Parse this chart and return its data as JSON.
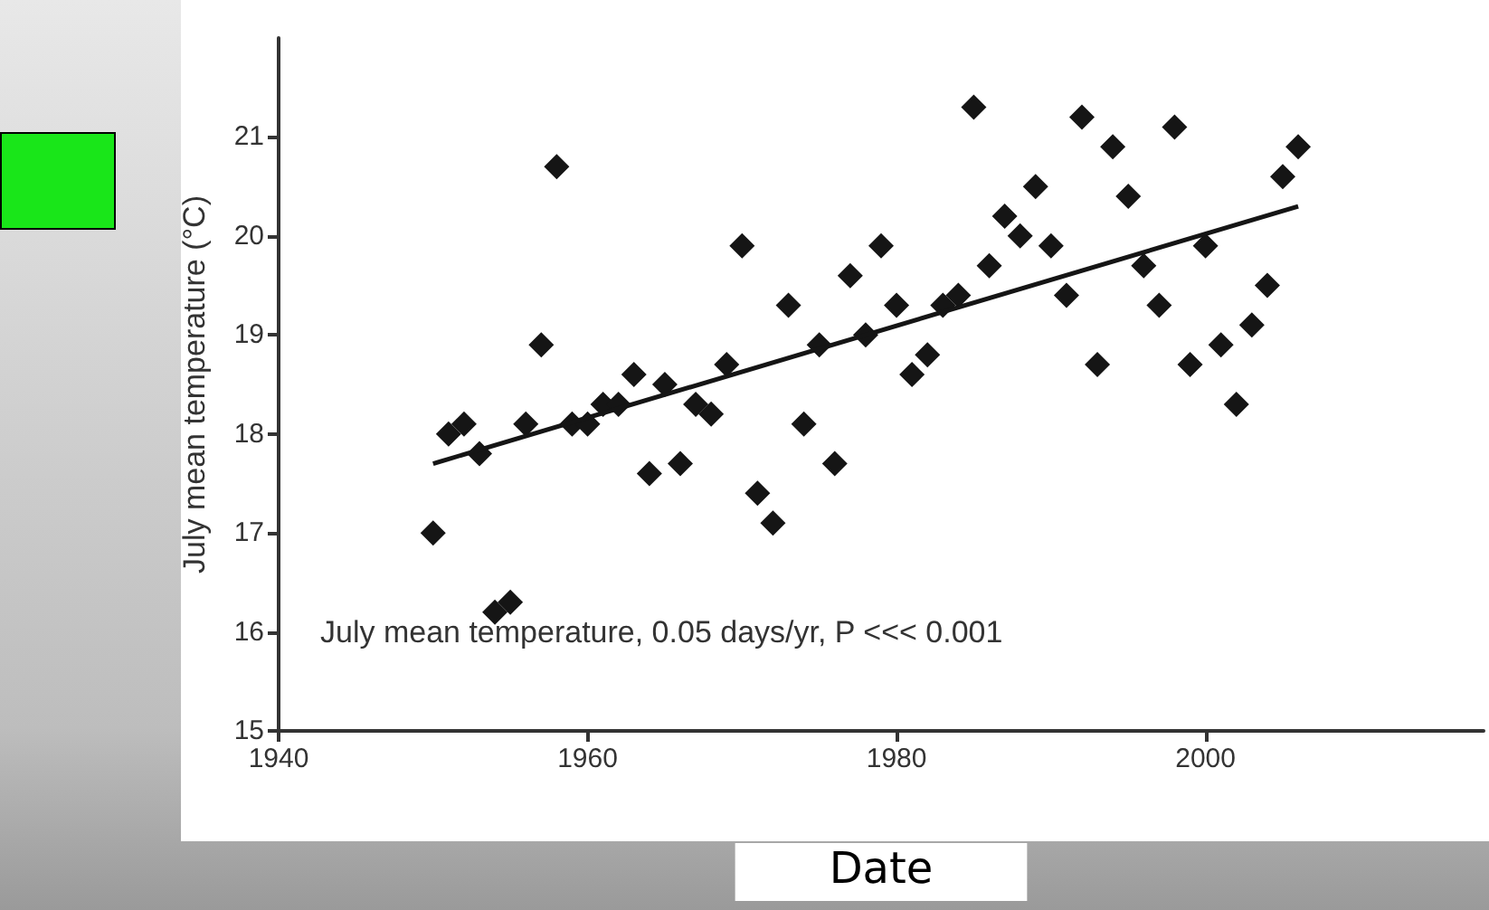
{
  "chart_data": {
    "type": "scatter",
    "xlabel": "Date",
    "ylabel": "July mean temperature (°C)",
    "annotations": [
      "July mean temperature, 0.05 days/yr, P <<< 0.001"
    ],
    "xlim": [
      1940,
      2018
    ],
    "xticks": [
      1940,
      1960,
      1980,
      2000
    ],
    "ylim": [
      15,
      22
    ],
    "yticks": [
      15,
      16,
      17,
      18,
      19,
      20,
      21
    ],
    "grid": false,
    "marker": "diamond",
    "series": [
      {
        "color": "#151515",
        "x": [
          1950,
          1951,
          1952,
          1953,
          1954,
          1955,
          1956,
          1957,
          1958,
          1959,
          1960,
          1961,
          1962,
          1963,
          1964,
          1965,
          1966,
          1967,
          1968,
          1969,
          1970,
          1971,
          1972,
          1973,
          1974,
          1975,
          1976,
          1977,
          1978,
          1979,
          1980,
          1981,
          1982,
          1983,
          1984,
          1985,
          1986,
          1987,
          1988,
          1989,
          1990,
          1991,
          1992,
          1993,
          1994,
          1995,
          1996,
          1997,
          1998,
          1999,
          2000,
          2001,
          2002,
          2003,
          2004,
          2005,
          2006
        ],
        "values": [
          17.0,
          18.0,
          18.1,
          17.8,
          16.2,
          16.3,
          18.1,
          18.9,
          20.7,
          18.1,
          18.1,
          18.3,
          18.3,
          18.6,
          17.6,
          18.5,
          17.7,
          18.3,
          18.2,
          18.7,
          19.9,
          17.4,
          17.1,
          19.3,
          18.1,
          18.9,
          17.7,
          19.6,
          19.0,
          19.9,
          19.3,
          18.6,
          18.8,
          19.3,
          19.4,
          21.3,
          19.7,
          20.2,
          20.0,
          20.5,
          19.9,
          19.4,
          21.2,
          18.7,
          20.9,
          20.4,
          19.7,
          19.3,
          21.1,
          18.7,
          19.9,
          18.9,
          18.3,
          19.1,
          19.5,
          20.6,
          20.9
        ]
      },
      {
        "type": "line",
        "color": "#151515",
        "marker": "none",
        "line_style": "solid",
        "x": [
          1950,
          2006
        ],
        "values": [
          17.7,
          20.3
        ]
      }
    ]
  }
}
